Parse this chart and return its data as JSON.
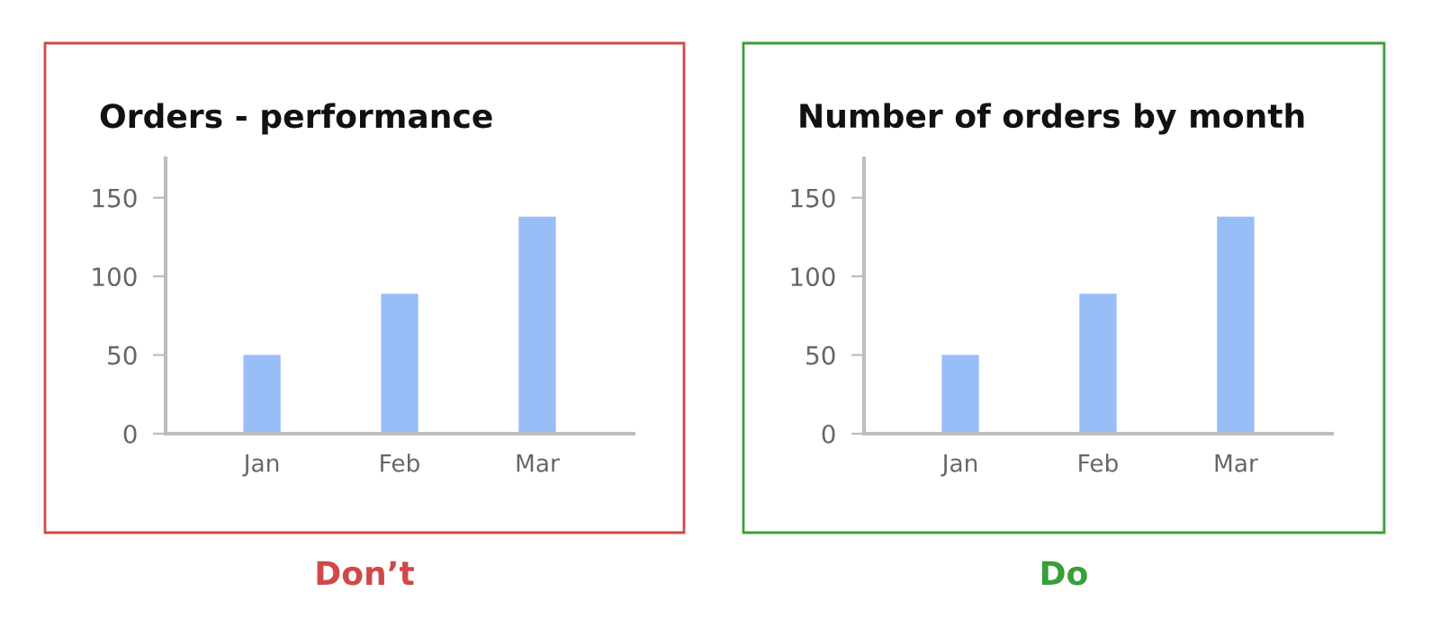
{
  "chart_data": [
    {
      "type": "bar",
      "title": "Orders - performance",
      "categories": [
        "Jan",
        "Feb",
        "Mar"
      ],
      "values": [
        50,
        89,
        138
      ],
      "color": "#98bdf7",
      "ylim": [
        0,
        175
      ],
      "yticks": [
        0,
        50,
        100,
        150
      ],
      "grid": false,
      "legend": false,
      "annotations": [
        "Don’t"
      ]
    },
    {
      "type": "bar",
      "title": "Number of orders by month",
      "categories": [
        "Jan",
        "Feb",
        "Mar"
      ],
      "values": [
        50,
        89,
        138
      ],
      "color": "#98bdf7",
      "ylim": [
        0,
        175
      ],
      "yticks": [
        0,
        50,
        100,
        150
      ],
      "grid": false,
      "legend": false,
      "annotations": [
        "Do"
      ]
    }
  ]
}
